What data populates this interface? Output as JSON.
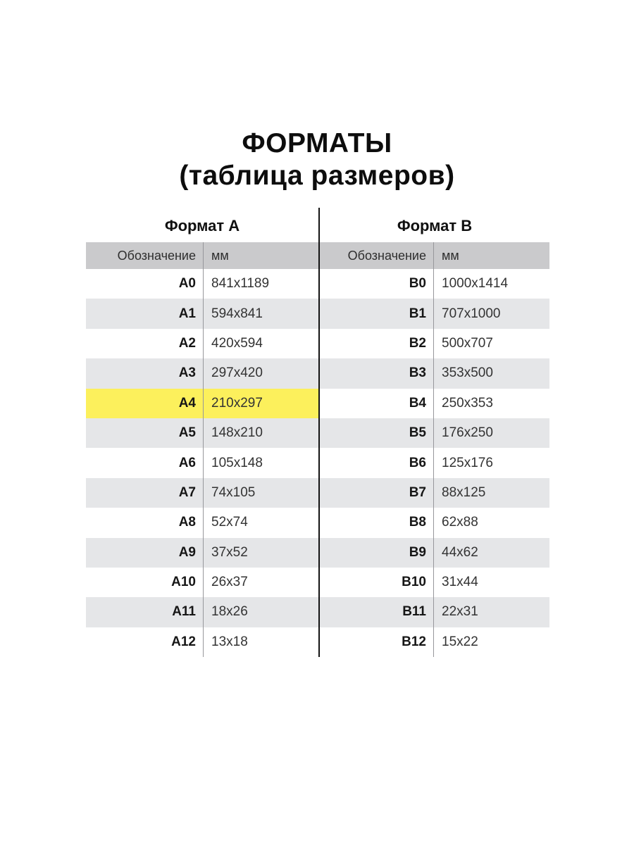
{
  "title": {
    "line1": "ФОРМАТЫ",
    "line2": "(таблица размеров)"
  },
  "colors": {
    "highlight": "#FCF05C",
    "header_bg": "#CACACC",
    "row_alt_bg": "#E5E6E8",
    "center_divider": "#141414",
    "column_line": "#97979B"
  },
  "chart_data": {
    "type": "table",
    "title": "ФОРМАТЫ (таблица размеров)",
    "highlighted_row": "A4",
    "tables": [
      {
        "name": "Формат A",
        "columns": [
          "Обозначение",
          "мм"
        ],
        "rows": [
          [
            "A0",
            "841x1189"
          ],
          [
            "A1",
            "594x841"
          ],
          [
            "A2",
            "420x594"
          ],
          [
            "A3",
            "297x420"
          ],
          [
            "A4",
            "210x297"
          ],
          [
            "A5",
            "148x210"
          ],
          [
            "A6",
            "105x148"
          ],
          [
            "A7",
            "74x105"
          ],
          [
            "A8",
            "52x74"
          ],
          [
            "A9",
            "37x52"
          ],
          [
            "A10",
            "26x37"
          ],
          [
            "A11",
            "18x26"
          ],
          [
            "A12",
            "13x18"
          ]
        ]
      },
      {
        "name": "Формат B",
        "columns": [
          "Обозначение",
          "мм"
        ],
        "rows": [
          [
            "B0",
            "1000x1414"
          ],
          [
            "B1",
            "707x1000"
          ],
          [
            "B2",
            "500x707"
          ],
          [
            "B3",
            "353x500"
          ],
          [
            "B4",
            "250x353"
          ],
          [
            "B5",
            "176x250"
          ],
          [
            "B6",
            "125x176"
          ],
          [
            "B7",
            "88x125"
          ],
          [
            "B8",
            "62x88"
          ],
          [
            "B9",
            "44x62"
          ],
          [
            "B10",
            "31x44"
          ],
          [
            "B11",
            "22x31"
          ],
          [
            "B12",
            "15x22"
          ]
        ]
      }
    ]
  }
}
